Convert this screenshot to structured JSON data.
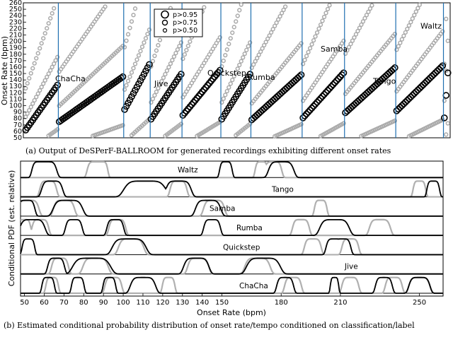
{
  "chart_data": [
    {
      "type": "scatter",
      "caption": "(a) Output of DeSPerF-BALLROOM for generated recordings exhibiting different onset rates",
      "ylabel": "Onset Rate (bpm)",
      "ylim": [
        50,
        260
      ],
      "yticks": [
        50,
        60,
        70,
        80,
        90,
        100,
        110,
        120,
        130,
        140,
        150,
        160,
        170,
        180,
        190,
        200,
        210,
        220,
        230,
        240,
        250,
        260
      ],
      "legend": {
        "position": "top-center",
        "entries": [
          "p>0.95",
          "p>0.75",
          "p>0.50"
        ]
      },
      "x_count": 240,
      "dividers": [
        19,
        56,
        71,
        89,
        111,
        128,
        157,
        181,
        210,
        237
      ],
      "segments": [
        {
          "name": "ChaCha",
          "start": 0,
          "end": 19
        },
        {
          "name": "Jive",
          "start": 19,
          "end": 56
        },
        {
          "name": "Quickstep",
          "start": 56,
          "end": 71
        },
        {
          "name": "Rumba",
          "start": 71,
          "end": 89
        },
        {
          "name": "Samba",
          "start": 89,
          "end": 111
        },
        {
          "name": "Tango",
          "start": 111,
          "end": 128
        },
        {
          "name": "Waltz",
          "start": 128,
          "end": 157
        },
        {
          "name": "ChaCha",
          "start": 157,
          "end": 181
        },
        {
          "name": "Jive",
          "start": 181,
          "end": 210
        },
        {
          "name": "Quickstep",
          "start": 210,
          "end": 237
        },
        {
          "name": "Rumba",
          "start": 237,
          "end": 240
        }
      ],
      "labels": [
        "ChaCha",
        "Jive",
        "Quickstep",
        "Rumba",
        "Samba",
        "Tango",
        "Waltz"
      ]
    },
    {
      "type": "line",
      "caption": "(b) Estimated conditional probability distribution of onset rate/tempo conditioned on classification/label",
      "xlabel": "Onset Rate (bpm)",
      "ylabel": "Conditional PDF (est. relative)",
      "xlim": [
        48,
        262
      ],
      "xticks": [
        50,
        60,
        70,
        80,
        90,
        100,
        110,
        120,
        130,
        140,
        150,
        180,
        210,
        250
      ],
      "rows": [
        {
          "name": "Waltz",
          "black": [
            [
              58,
              4
            ],
            [
              61,
              5
            ],
            [
              152,
              3
            ],
            [
              180,
              6
            ]
          ],
          "gray": [
            [
              86,
              4
            ],
            [
              89,
              3
            ],
            [
              170,
              3
            ],
            [
              176,
              4
            ]
          ]
        },
        {
          "name": "Tango",
          "black": [
            [
              64,
              5
            ],
            [
              111,
              10
            ],
            [
              128,
              6
            ],
            [
              257,
              3
            ]
          ],
          "gray": [
            [
              62,
              4
            ],
            [
              128,
              4
            ],
            [
              250,
              3
            ]
          ]
        },
        {
          "name": "Samba",
          "black": [
            [
              51,
              4
            ],
            [
              72,
              7
            ],
            [
              143,
              6
            ]
          ],
          "gray": [
            [
              52,
              5
            ],
            [
              70,
              5
            ],
            [
              146,
              5
            ],
            [
              200,
              3
            ]
          ]
        },
        {
          "name": "Rumba",
          "black": [
            [
              54,
              6
            ],
            [
              75,
              4
            ],
            [
              96,
              4
            ],
            [
              145,
              4
            ],
            [
              207,
              7
            ]
          ],
          "gray": [
            [
              50,
              3
            ],
            [
              58,
              4
            ],
            [
              97,
              4
            ],
            [
              190,
              4
            ],
            [
              230,
              5
            ]
          ]
        },
        {
          "name": "Quickstep",
          "black": [
            [
              52,
              3
            ],
            [
              103,
              8
            ],
            [
              207,
              4
            ],
            [
              211,
              4
            ]
          ],
          "gray": [
            [
              104,
              6
            ],
            [
              196,
              4
            ],
            [
              215,
              4
            ]
          ]
        },
        {
          "name": "Jive",
          "black": [
            [
              66,
              4
            ],
            [
              84,
              9
            ],
            [
              137,
              6
            ],
            [
              171,
              8
            ]
          ],
          "gray": [
            [
              68,
              4
            ],
            [
              86,
              6
            ],
            [
              138,
              5
            ],
            [
              168,
              6
            ]
          ]
        },
        {
          "name": "ChaCha",
          "black": [
            [
              62,
              3
            ],
            [
              77,
              3
            ],
            [
              93,
              3
            ],
            [
              110,
              6
            ],
            [
              182,
              4
            ],
            [
              207,
              2
            ],
            [
              232,
              4
            ],
            [
              250,
              5
            ]
          ],
          "gray": [
            [
              64,
              3
            ],
            [
              95,
              4
            ],
            [
              123,
              3
            ],
            [
              186,
              4
            ],
            [
              215,
              4
            ],
            [
              237,
              4
            ],
            [
              250,
              5
            ]
          ]
        }
      ]
    }
  ]
}
